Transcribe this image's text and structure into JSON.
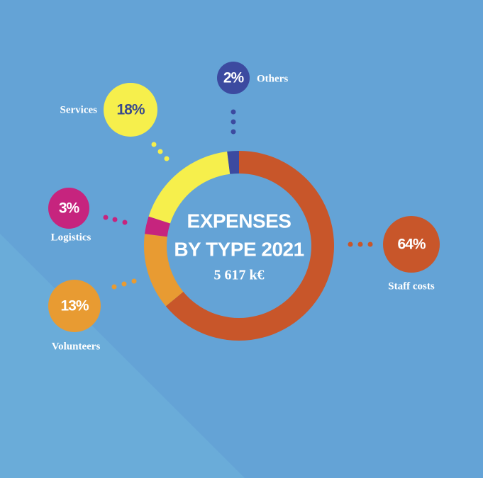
{
  "chart_data": {
    "type": "donut",
    "title_lines": [
      "EXPENSES",
      "BY TYPE 2021"
    ],
    "subtitle": "5 617 k€",
    "categories": [
      "Staff costs",
      "Volunteers",
      "Logistics",
      "Services",
      "Others"
    ],
    "values": [
      64,
      13,
      3,
      18,
      2
    ],
    "value_labels": [
      "64%",
      "13%",
      "3%",
      "18%",
      "2%"
    ],
    "colors": [
      "#c8562a",
      "#e89b32",
      "#c6247e",
      "#f6ef4c",
      "#3c4aa0"
    ]
  }
}
